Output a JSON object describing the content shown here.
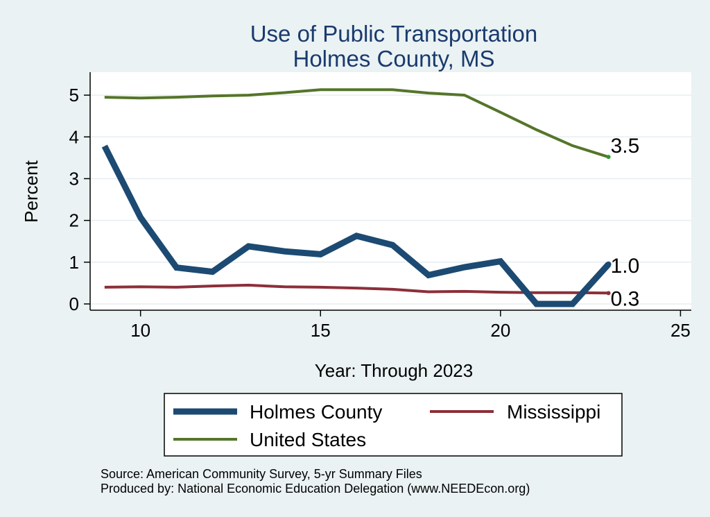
{
  "chart_data": {
    "type": "line",
    "title": [
      "Use of Public Transportation",
      "Holmes County, MS"
    ],
    "xlabel": "Year: Through 2023",
    "ylabel": "Percent",
    "xlim": [
      8.6,
      25.3
    ],
    "ylim": [
      -0.15,
      5.55
    ],
    "xticks": [
      10,
      15,
      20,
      25
    ],
    "yticks": [
      0,
      1,
      2,
      3,
      4,
      5
    ],
    "grid": true,
    "legend_position": "bottom",
    "series": [
      {
        "name": "Holmes County",
        "color": "#1c4a72",
        "width": 9,
        "x": [
          9,
          10,
          11,
          12,
          13,
          14,
          15,
          16,
          17,
          18,
          19,
          20,
          21,
          22,
          23
        ],
        "values": [
          3.78,
          2.07,
          0.87,
          0.77,
          1.38,
          1.26,
          1.19,
          1.63,
          1.41,
          0.69,
          0.88,
          1.02,
          0.0,
          0.0,
          0.95
        ],
        "end_label": "1.0"
      },
      {
        "name": "Mississippi",
        "color": "#8c2f39",
        "width": 4,
        "x": [
          9,
          10,
          11,
          12,
          13,
          14,
          15,
          16,
          17,
          18,
          19,
          20,
          21,
          22,
          23
        ],
        "values": [
          0.4,
          0.41,
          0.4,
          0.43,
          0.45,
          0.41,
          0.4,
          0.38,
          0.35,
          0.29,
          0.3,
          0.28,
          0.27,
          0.27,
          0.26
        ],
        "end_label": "0.3"
      },
      {
        "name": "United States",
        "color": "#55752a",
        "width": 4,
        "x": [
          9,
          10,
          11,
          12,
          13,
          14,
          15,
          16,
          17,
          18,
          19,
          20,
          21,
          22,
          23
        ],
        "values": [
          4.95,
          4.93,
          4.95,
          4.98,
          5.0,
          5.06,
          5.13,
          5.13,
          5.13,
          5.05,
          5.0,
          4.59,
          4.17,
          3.79,
          3.52
        ],
        "end_label": "3.5"
      }
    ]
  },
  "source_note": "Source: American Community Survey, 5-yr Summary Files",
  "produced_note": "Produced by: National Economic Education Delegation (www.NEEDEcon.org)"
}
